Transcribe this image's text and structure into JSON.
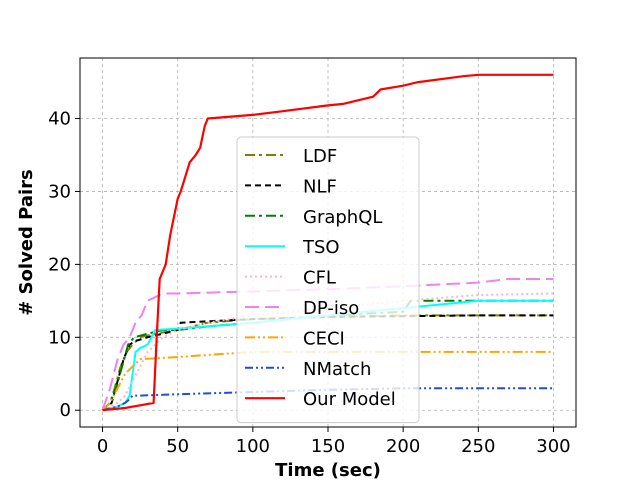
{
  "chart_data": {
    "type": "line",
    "title": "",
    "xlabel": "Time (sec)",
    "ylabel": "# Solved Pairs",
    "xlim": [
      -15,
      315
    ],
    "ylim": [
      -2.3,
      48.3
    ],
    "xticks": [
      0,
      50,
      100,
      150,
      200,
      250,
      300
    ],
    "yticks": [
      0,
      10,
      20,
      30,
      40
    ],
    "grid": true,
    "legend_position": "center",
    "series": [
      {
        "name": "LDF",
        "color": "#808000",
        "dash": "10,4,3,4",
        "width": 2,
        "x": [
          0,
          5,
          8,
          12,
          16,
          20,
          25,
          35,
          50,
          70,
          100,
          150,
          200,
          250,
          300
        ],
        "y": [
          0,
          1,
          3,
          6,
          8,
          9,
          10,
          10.5,
          11,
          12,
          12.5,
          12.8,
          13,
          13,
          13
        ]
      },
      {
        "name": "NLF",
        "color": "#000000",
        "dash": "6,4",
        "width": 2,
        "x": [
          0,
          6,
          10,
          14,
          18,
          22,
          30,
          40,
          50,
          52,
          70,
          100,
          150,
          200,
          250,
          300
        ],
        "y": [
          0,
          1,
          4,
          7,
          9,
          9.5,
          10,
          10.5,
          11,
          12,
          12.2,
          12.5,
          12.8,
          12.9,
          13,
          13
        ]
      },
      {
        "name": "GraphQL",
        "color": "#008000",
        "dash": "10,4,3,4",
        "width": 2,
        "x": [
          0,
          5,
          9,
          13,
          17,
          21,
          30,
          40,
          50,
          70,
          100,
          150,
          200,
          205,
          250,
          300
        ],
        "y": [
          0,
          1,
          3,
          6,
          9,
          10,
          10.5,
          11,
          11,
          11.5,
          12,
          13,
          13.5,
          15,
          15,
          15
        ]
      },
      {
        "name": "TSO",
        "color": "#00ffff",
        "dash": "",
        "width": 2,
        "x": [
          0,
          10,
          15,
          18,
          20,
          22,
          25,
          30,
          35,
          50,
          70,
          100,
          150,
          200,
          250,
          300
        ],
        "y": [
          0,
          0.5,
          1,
          2,
          5,
          8,
          8.5,
          9,
          11,
          11.2,
          11.5,
          12,
          13,
          14,
          15,
          15
        ]
      },
      {
        "name": "CFL",
        "color": "#ffb6c1",
        "dash": "2,3",
        "width": 2,
        "x": [
          0,
          5,
          10,
          15,
          20,
          25,
          30,
          35,
          40,
          50,
          70,
          100,
          150,
          200,
          250,
          300
        ],
        "y": [
          0,
          0.5,
          1,
          2,
          4,
          6,
          8,
          9,
          10,
          11,
          12,
          13,
          14,
          15,
          15.8,
          16
        ]
      },
      {
        "name": "DP-iso",
        "color": "#ee82ee",
        "dash": "14,6",
        "width": 2,
        "x": [
          0,
          5,
          10,
          14,
          18,
          22,
          26,
          30,
          40,
          50,
          100,
          150,
          200,
          220,
          250,
          270,
          300
        ],
        "y": [
          0,
          3,
          7,
          9,
          10,
          12,
          13,
          15,
          16,
          16,
          16.3,
          16.6,
          17,
          17.2,
          17.5,
          18,
          18
        ]
      },
      {
        "name": "CECI",
        "color": "#ffa500",
        "dash": "10,3,2,3,2,3",
        "width": 2,
        "x": [
          0,
          5,
          10,
          15,
          20,
          25,
          50,
          100,
          150,
          200,
          250,
          300
        ],
        "y": [
          0,
          1,
          3,
          5,
          6,
          7,
          7.3,
          8,
          8,
          8,
          8,
          8
        ]
      },
      {
        "name": "NMatch",
        "color": "#1f4fd6",
        "dash": "8,3,2,3,2,3",
        "width": 2,
        "x": [
          0,
          10,
          15,
          18,
          20,
          25,
          50,
          100,
          150,
          200,
          250,
          300
        ],
        "y": [
          0,
          0.5,
          1,
          1.5,
          2,
          2,
          2.2,
          2.5,
          2.8,
          3,
          3,
          3
        ]
      },
      {
        "name": "Our Model",
        "color": "#ff0000",
        "dash": "",
        "width": 2.2,
        "x": [
          0,
          15,
          34,
          36,
          38,
          42,
          45,
          48,
          50,
          52,
          55,
          58,
          62,
          65,
          66,
          68,
          70,
          100,
          120,
          150,
          160,
          170,
          180,
          185,
          200,
          210,
          240,
          250,
          300
        ],
        "y": [
          0,
          0.3,
          1,
          10,
          18,
          20,
          24,
          27,
          29,
          30,
          32,
          34,
          35,
          36,
          37,
          39,
          40,
          40.5,
          41,
          41.8,
          42,
          42.5,
          43,
          44,
          44.5,
          45,
          45.8,
          46,
          46
        ]
      }
    ]
  }
}
